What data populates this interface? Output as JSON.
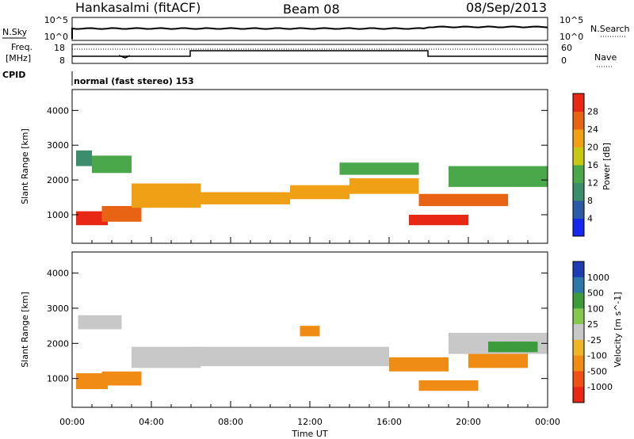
{
  "header": {
    "station": "Hankasalmi (fitACF)",
    "beam": "Beam 08",
    "date": "08/Sep/2013"
  },
  "strip_labels": {
    "nsky": "N.Sky",
    "nsearch": "N.Search",
    "freq": "Freq.",
    "freq_unit": "[MHz]",
    "nave": "Nave",
    "cpid": "CPID",
    "cpid_value": "normal (fast stereo) 153",
    "pow_ticks_left": [
      "10^5",
      "10^0"
    ],
    "pow_ticks_right": [
      "10^5",
      "10^0"
    ],
    "freq_ticks": [
      "18",
      "8"
    ],
    "nave_ticks": [
      "60",
      "0"
    ]
  },
  "colors": {
    "power": [
      "#1428f0",
      "#2c5aa8",
      "#3c8c6e",
      "#4aa84a",
      "#c8c814",
      "#f0a014",
      "#e86414",
      "#e82814"
    ],
    "velocity_pos": [
      "#1e3cb4",
      "#2c78a8",
      "#3c9c3c",
      "#84c850"
    ],
    "velocity_neutral": "#c8c8c8",
    "velocity_neg": [
      "#f0b428",
      "#f08c14",
      "#f05014",
      "#e82814"
    ]
  },
  "chart_data": [
    {
      "type": "heatmap",
      "title": "Power",
      "ylabel": "Slant Range [km]",
      "xlabel": "Time UT",
      "x_ticks": [
        "00:00",
        "04:00",
        "08:00",
        "12:00",
        "16:00",
        "20:00",
        "00:00"
      ],
      "y_ticks": [
        "1000",
        "2000",
        "3000",
        "4000"
      ],
      "ylim": [
        180,
        4600
      ],
      "colorbar": {
        "label": "Power [dB]",
        "ticks": [
          "4",
          "8",
          "12",
          "16",
          "20",
          "24",
          "28"
        ]
      },
      "bands": [
        {
          "t": [
            0.2,
            1.8
          ],
          "range": [
            700,
            1100
          ],
          "value": 28
        },
        {
          "t": [
            1.5,
            3.5
          ],
          "range": [
            800,
            1250
          ],
          "value": 24
        },
        {
          "t": [
            0.2,
            1.0
          ],
          "range": [
            2400,
            2850
          ],
          "value": 10
        },
        {
          "t": [
            1.0,
            3.0
          ],
          "range": [
            2200,
            2700
          ],
          "value": 12
        },
        {
          "t": [
            3.0,
            6.5
          ],
          "range": [
            1200,
            1900
          ],
          "value": 20
        },
        {
          "t": [
            6.0,
            11.0
          ],
          "range": [
            1300,
            1650
          ],
          "value": 22
        },
        {
          "t": [
            11.0,
            14.0
          ],
          "range": [
            1450,
            1850
          ],
          "value": 22
        },
        {
          "t": [
            14.0,
            17.5
          ],
          "range": [
            1600,
            2050
          ],
          "value": 22
        },
        {
          "t": [
            13.5,
            17.5
          ],
          "range": [
            2150,
            2500
          ],
          "value": 12
        },
        {
          "t": [
            17.0,
            20.0
          ],
          "range": [
            700,
            1000
          ],
          "value": 28
        },
        {
          "t": [
            17.5,
            22.0
          ],
          "range": [
            1250,
            1600
          ],
          "value": 24
        },
        {
          "t": [
            19.0,
            24.0
          ],
          "range": [
            1800,
            2400
          ],
          "value": 14
        }
      ]
    },
    {
      "type": "heatmap",
      "title": "Velocity",
      "ylabel": "Slant Range [km]",
      "xlabel": "Time UT",
      "x_ticks": [
        "00:00",
        "04:00",
        "08:00",
        "12:00",
        "16:00",
        "20:00",
        "00:00"
      ],
      "y_ticks": [
        "1000",
        "2000",
        "3000",
        "4000"
      ],
      "ylim": [
        180,
        4600
      ],
      "colorbar": {
        "label": "Velocity [m s^-1]",
        "ticks": [
          "1000",
          "500",
          "100",
          "25",
          "-25",
          "-100",
          "-500",
          "-1000"
        ]
      },
      "bands": [
        {
          "t": [
            0.2,
            1.8
          ],
          "range": [
            700,
            1150
          ],
          "value": -200
        },
        {
          "t": [
            1.5,
            3.5
          ],
          "range": [
            800,
            1200
          ],
          "value": -150
        },
        {
          "t": [
            0.3,
            2.5
          ],
          "range": [
            2400,
            2800
          ],
          "value": 0
        },
        {
          "t": [
            3.0,
            6.5
          ],
          "range": [
            1300,
            1900
          ],
          "value": 0
        },
        {
          "t": [
            6.0,
            16.0
          ],
          "range": [
            1350,
            1900
          ],
          "value": 0
        },
        {
          "t": [
            11.5,
            12.5
          ],
          "range": [
            2200,
            2500
          ],
          "value": -300
        },
        {
          "t": [
            16.0,
            19.0
          ],
          "range": [
            1200,
            1600
          ],
          "value": -300
        },
        {
          "t": [
            17.5,
            20.5
          ],
          "range": [
            650,
            950
          ],
          "value": -200
        },
        {
          "t": [
            19.0,
            24.0
          ],
          "range": [
            1700,
            2300
          ],
          "value": 0
        },
        {
          "t": [
            20.0,
            23.0
          ],
          "range": [
            1300,
            1700
          ],
          "value": -150
        },
        {
          "t": [
            21.0,
            23.5
          ],
          "range": [
            1750,
            2050
          ],
          "value": 300
        }
      ]
    }
  ]
}
